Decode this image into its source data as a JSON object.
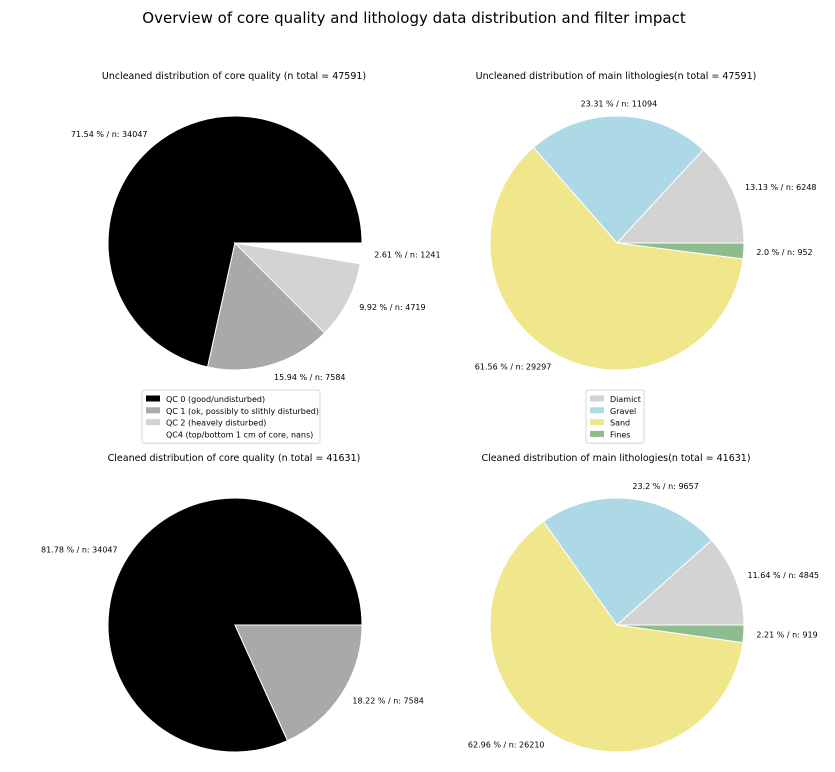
{
  "figure": {
    "title": "Overview of core quality and lithology data distribution and filter impact"
  },
  "chart_data": [
    {
      "type": "pie",
      "title": "Uncleaned distribution of core quality (n total = 47591)",
      "labels": [
        "QC 0 (good/undisturbed)",
        "QC 1 (ok, possibly to slithly disturbed)",
        "QC 2 (heavely disturbed)",
        "QC4 (top/bottom 1 cm of core, nans)"
      ],
      "values": [
        34047,
        7584,
        4719,
        1241
      ],
      "slice_labels": [
        "71.54 % / n: 34047",
        "15.94 % / n: 7584",
        "9.92 % / n: 4719",
        "2.61 % / n: 1241"
      ],
      "colors": [
        "#000000",
        "#a9a9a9",
        "#d3d3d3",
        "#ffffff"
      ],
      "legend": {
        "placement": "below",
        "entries": [
          "QC 0 (good/undisturbed)",
          "QC 1 (ok, possibly to slithly disturbed)",
          "QC 2 (heavely disturbed)",
          "QC4 (top/bottom 1 cm of core, nans)"
        ]
      }
    },
    {
      "type": "pie",
      "title": "Uncleaned distribution of main lithologies(n total = 47591)",
      "labels": [
        "Diamict",
        "Gravel",
        "Sand",
        "Fines"
      ],
      "values": [
        6248,
        11094,
        29297,
        952
      ],
      "slice_labels": [
        "13.13 % / n: 6248",
        "23.31 % / n: 11094",
        "61.56 % / n: 29297",
        "2.0 % / n: 952"
      ],
      "colors": [
        "#d3d3d3",
        "#add8e6",
        "#f0e68c",
        "#8fbc8f"
      ],
      "legend": {
        "placement": "below",
        "entries": [
          "Diamict",
          "Gravel",
          "Sand",
          "Fines"
        ]
      }
    },
    {
      "type": "pie",
      "title": "Cleaned distribution of core quality (n total = 41631)",
      "labels": [
        "QC 0 (good/undisturbed)",
        "QC 1 (ok, possibly to slithly disturbed)"
      ],
      "values": [
        34047,
        7584
      ],
      "slice_labels": [
        "81.78 % / n: 34047",
        "18.22 % / n: 7584"
      ],
      "colors": [
        "#000000",
        "#a9a9a9"
      ]
    },
    {
      "type": "pie",
      "title": "Cleaned distribution of main lithologies(n total = 41631)",
      "labels": [
        "Diamict",
        "Gravel",
        "Sand",
        "Fines"
      ],
      "values": [
        4845,
        9657,
        26210,
        919
      ],
      "slice_labels": [
        "11.64 % / n: 4845",
        "23.2 % / n: 9657",
        "62.96 % / n: 26210",
        "2.21 % / n: 919"
      ],
      "colors": [
        "#d3d3d3",
        "#add8e6",
        "#f0e68c",
        "#8fbc8f"
      ]
    }
  ]
}
